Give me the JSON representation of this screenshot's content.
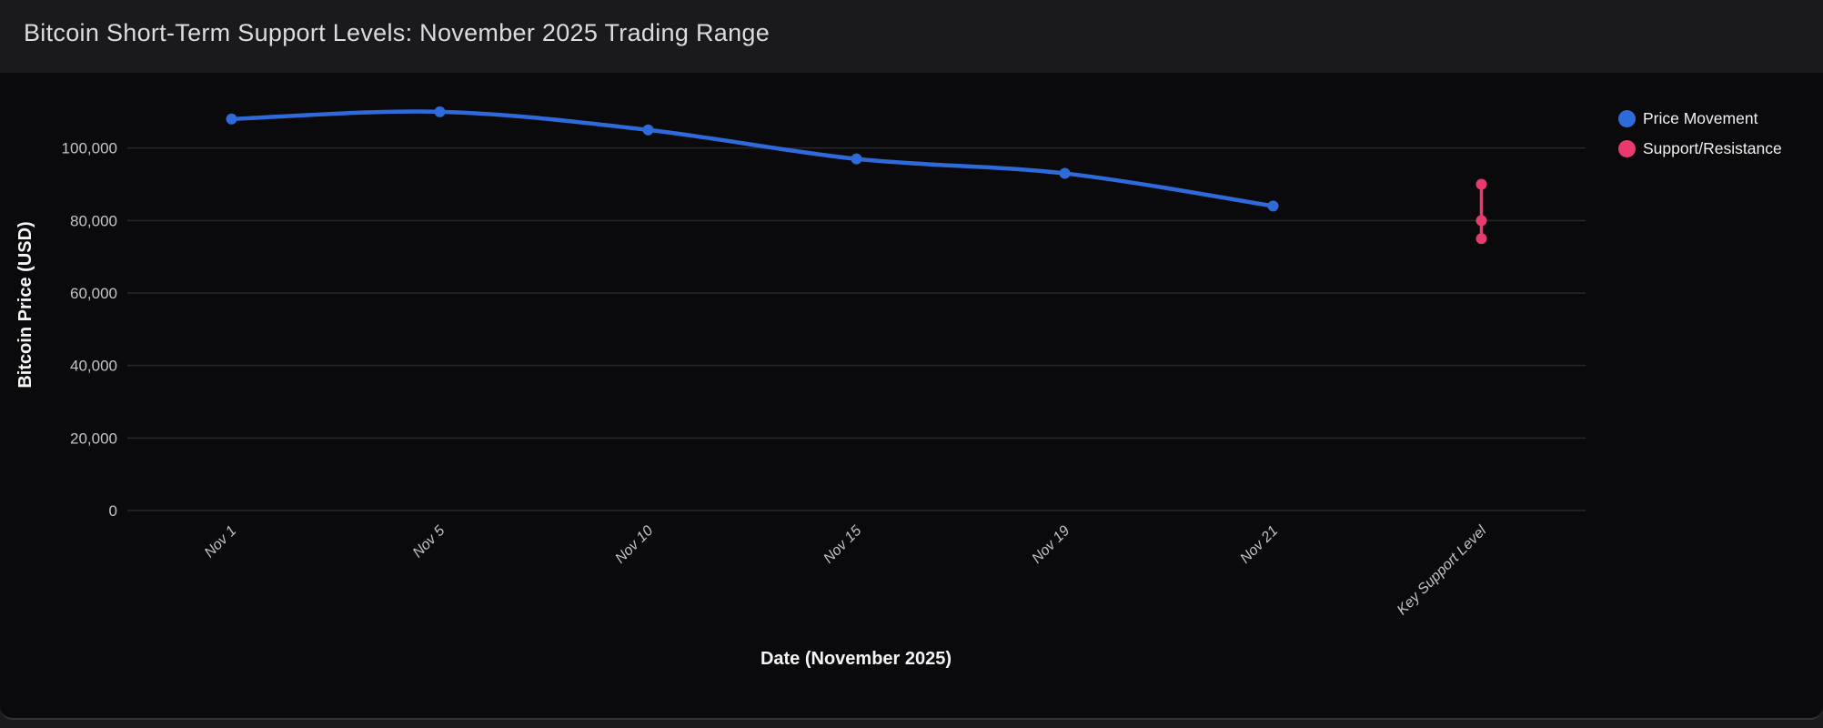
{
  "window": {
    "title": "Bitcoin Short-Term Support Levels: November 2025 Trading Range"
  },
  "chart_data": {
    "type": "line",
    "title": "Bitcoin Short-Term Support Levels: November 2025 Trading Range",
    "xlabel": "Date (November 2025)",
    "ylabel": "Bitcoin Price (USD)",
    "categories": [
      "Nov 1",
      "Nov 5",
      "Nov 10",
      "Nov 15",
      "Nov 19",
      "Nov 21",
      "Key Support Level"
    ],
    "ylim": [
      0,
      120000
    ],
    "y_ticks": [
      0,
      20000,
      40000,
      60000,
      80000,
      100000
    ],
    "y_tick_labels": [
      "0",
      "20,000",
      "40,000",
      "60,000",
      "80,000",
      "100,000"
    ],
    "grid": true,
    "legend_position": "top-right",
    "series": [
      {
        "name": "Price Movement",
        "type": "line+markers",
        "color": "#2F6ADB",
        "x": [
          "Nov 1",
          "Nov 5",
          "Nov 10",
          "Nov 15",
          "Nov 19",
          "Nov 21"
        ],
        "values": [
          108000,
          110000,
          105000,
          97000,
          93000,
          84000
        ]
      },
      {
        "name": "Support/Resistance",
        "type": "vertical-range+markers",
        "color": "#E83A6D",
        "x": [
          "Key Support Level",
          "Key Support Level",
          "Key Support Level"
        ],
        "values": [
          75000,
          80000,
          90000
        ]
      }
    ]
  },
  "colors": {
    "header_bg": "#1A1A1D",
    "chart_bg": "#0A0A0C",
    "footer_bg": "#1B1B1F",
    "panel_edge": "#32323A",
    "gridline": "#28282C",
    "tick_label": "#C4C4C6",
    "axis_title": "#F5F5F5",
    "title_text": "#DCDCDE",
    "legend_text": "#F0F0F0",
    "price_line": "#2F6ADB",
    "support": "#E83A6D"
  }
}
